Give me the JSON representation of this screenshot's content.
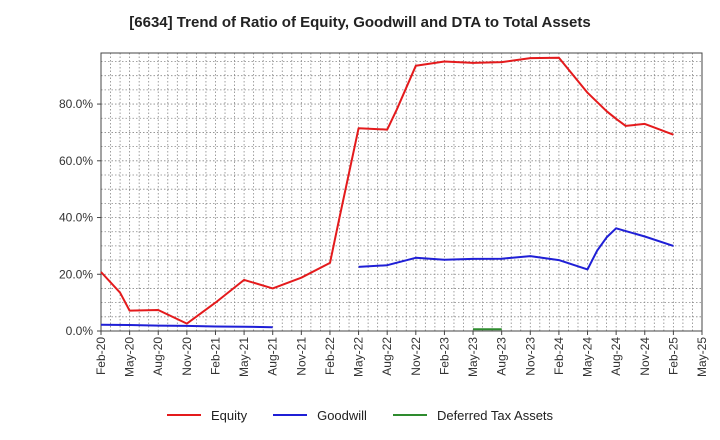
{
  "chart_data": {
    "type": "line",
    "title": "[6634]  Trend of Ratio of Equity, Goodwill and DTA to Total Assets",
    "xlabel": "",
    "ylabel": "",
    "ylim": [
      0,
      98
    ],
    "y_ticks": [
      0,
      20,
      40,
      60,
      80
    ],
    "y_tick_labels": [
      "0.0%",
      "20.0%",
      "40.0%",
      "60.0%",
      "80.0%"
    ],
    "x_tick_labels": [
      "Feb-20",
      "May-20",
      "Aug-20",
      "Nov-20",
      "Feb-21",
      "May-21",
      "Aug-21",
      "Nov-21",
      "Feb-22",
      "May-22",
      "Aug-22",
      "Nov-22",
      "Feb-23",
      "May-23",
      "Aug-23",
      "Nov-23",
      "Feb-24",
      "May-24",
      "Aug-24",
      "Nov-24",
      "Feb-25",
      "May-25"
    ],
    "grid": true,
    "legend_position": "bottom",
    "series": [
      {
        "name": "Equity",
        "color": "#e41a1c",
        "points": [
          [
            "Feb-20",
            20.8
          ],
          [
            "Apr-20",
            13.5
          ],
          [
            "May-20",
            7.2
          ],
          [
            "Aug-20",
            7.4
          ],
          [
            "Nov-20",
            2.6
          ],
          [
            "Feb-21",
            10.0
          ],
          [
            "May-21",
            18.0
          ],
          [
            "Aug-21",
            15.0
          ],
          [
            "Nov-21",
            18.8
          ],
          [
            "Feb-22",
            24.0
          ],
          [
            "Mar-22",
            40.0
          ],
          [
            "May-22",
            71.5
          ],
          [
            "Aug-22",
            71.0
          ],
          [
            "Sep-22",
            78.0
          ],
          [
            "Nov-22",
            93.5
          ],
          [
            "Feb-23",
            95.0
          ],
          [
            "May-23",
            94.5
          ],
          [
            "Aug-23",
            94.8
          ],
          [
            "Nov-23",
            96.2
          ],
          [
            "Feb-24",
            96.3
          ],
          [
            "May-24",
            84.0
          ],
          [
            "Jul-24",
            77.5
          ],
          [
            "Aug-24",
            74.8
          ],
          [
            "Sep-24",
            72.3
          ],
          [
            "Nov-24",
            73.0
          ],
          [
            "Feb-25",
            69.2
          ]
        ]
      },
      {
        "name": "Goodwill",
        "color": "#1f1fd6",
        "segments": [
          [
            [
              "Feb-20",
              2.2
            ],
            [
              "May-20",
              2.1
            ],
            [
              "Aug-20",
              1.9
            ],
            [
              "Nov-20",
              1.8
            ],
            [
              "Feb-21",
              1.6
            ],
            [
              "May-21",
              1.5
            ],
            [
              "Aug-21",
              1.3
            ]
          ],
          [
            [
              "May-22",
              22.6
            ],
            [
              "Aug-22",
              23.2
            ],
            [
              "Nov-22",
              25.8
            ],
            [
              "Feb-23",
              25.1
            ],
            [
              "May-23",
              25.4
            ],
            [
              "Aug-23",
              25.5
            ],
            [
              "Nov-23",
              26.4
            ],
            [
              "Feb-24",
              25.0
            ],
            [
              "May-24",
              21.7
            ],
            [
              "Jun-24",
              28.3
            ],
            [
              "Jul-24",
              33.0
            ],
            [
              "Aug-24",
              36.2
            ],
            [
              "Nov-24",
              33.3
            ],
            [
              "Feb-25",
              30.0
            ]
          ]
        ]
      },
      {
        "name": "Deferred Tax Assets",
        "color": "#2e8b2e",
        "points": [
          [
            "May-23",
            0.6
          ],
          [
            "Aug-23",
            0.6
          ]
        ]
      }
    ]
  }
}
